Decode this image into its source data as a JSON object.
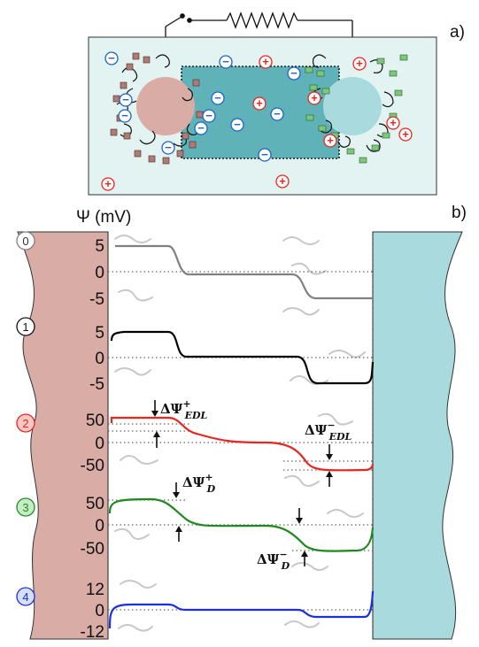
{
  "panel_a": {
    "label": "a)"
  },
  "panel_b": {
    "label": "b)",
    "y_axis_label": "Ψ (mV)"
  },
  "symbols": {
    "anion": "−",
    "cation": "+"
  },
  "states": [
    {
      "id": "0",
      "color": "#808080",
      "ticks": [
        "5",
        "0",
        "-5"
      ]
    },
    {
      "id": "1",
      "color": "#000000",
      "ticks": [
        "5",
        "0",
        "-5"
      ]
    },
    {
      "id": "2",
      "color": "#e8251e",
      "ticks": [
        "50",
        "0",
        "-50"
      ]
    },
    {
      "id": "3",
      "color": "#1e8a1e",
      "ticks": [
        "50",
        "0",
        "-50"
      ]
    },
    {
      "id": "4",
      "color": "#1a2fe0",
      "ticks": [
        "12",
        "0",
        "-12"
      ]
    }
  ],
  "annotations": {
    "edl_plus": {
      "main": "ΔΨ",
      "sup": "+",
      "sub": "EDL"
    },
    "edl_minus": {
      "main": "ΔΨ",
      "sup": "−",
      "sub": "EDL"
    },
    "d_plus": {
      "main": "ΔΨ",
      "sup": "+",
      "sub": "D"
    },
    "d_minus": {
      "main": "ΔΨ",
      "sup": "−",
      "sub": "D"
    }
  },
  "colors": {
    "left_electrode": "#d9aca5",
    "right_electrode": "#a9dadd",
    "cell_fill": "#e3f3f1",
    "pore_fill": "#5fb2b8",
    "anion_ring": "#1e63c8",
    "cation_ring": "#e8251e",
    "cation_square": "#b07b74",
    "anion_square": "#7cc77a"
  }
}
